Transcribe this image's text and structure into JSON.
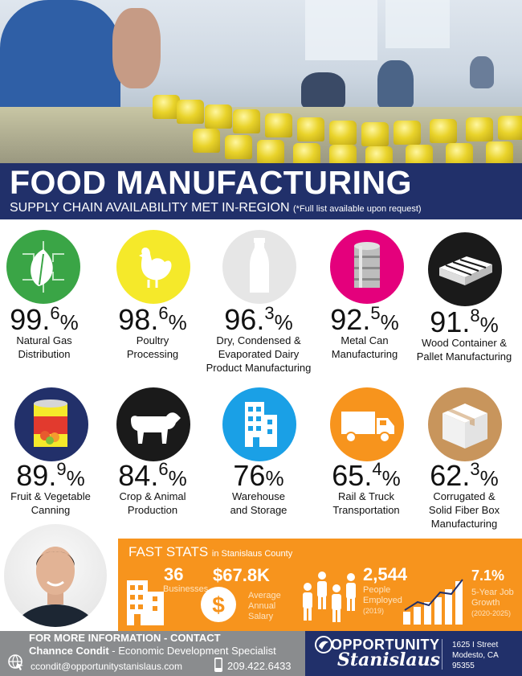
{
  "header": {
    "title": "FOOD MANUFACTURING",
    "subtitle": "SUPPLY CHAIN AVAILABILITY MET IN-REGION",
    "note": "(*Full list available upon request)"
  },
  "industries": [
    {
      "icon": "leaf-circuit-icon",
      "whole": "99.",
      "dec": "6",
      "sym": "%",
      "label1": "Natural Gas",
      "label2": "Distribution",
      "label3": ""
    },
    {
      "icon": "chicken-icon",
      "whole": "98.",
      "dec": "6",
      "sym": "%",
      "label1": "Poultry",
      "label2": "Processing",
      "label3": ""
    },
    {
      "icon": "milk-bottle-icon",
      "whole": "96.",
      "dec": "3",
      "sym": "%",
      "label1": "Dry, Condensed &",
      "label2": "Evaporated Dairy",
      "label3": "Product Manufacturing"
    },
    {
      "icon": "metal-can-icon",
      "whole": "92.",
      "dec": "5",
      "sym": "%",
      "label1": "Metal Can",
      "label2": "Manufacturing",
      "label3": ""
    },
    {
      "icon": "pallet-icon",
      "whole": "91.",
      "dec": "8",
      "sym": "%",
      "label1": "Wood Container &",
      "label2": "Pallet Manufacturing",
      "label3": ""
    },
    {
      "icon": "canned-fruit-icon",
      "whole": "89.",
      "dec": "9",
      "sym": "%",
      "label1": "Fruit & Vegetable",
      "label2": "Canning",
      "label3": ""
    },
    {
      "icon": "cow-icon",
      "whole": "84.",
      "dec": "6",
      "sym": "%",
      "label1": "Crop & Animal",
      "label2": "Production",
      "label3": ""
    },
    {
      "icon": "warehouse-building-icon",
      "whole": "76",
      "dec": "",
      "sym": "%",
      "label1": "Warehouse",
      "label2": "and Storage",
      "label3": ""
    },
    {
      "icon": "truck-icon",
      "whole": "65.",
      "dec": "4",
      "sym": "%",
      "label1": "Rail & Truck",
      "label2": "Transportation",
      "label3": ""
    },
    {
      "icon": "box-icon",
      "whole": "62.",
      "dec": "3",
      "sym": "%",
      "label1": "Corrugated &",
      "label2": "Solid Fiber Box",
      "label3": "Manufacturing"
    }
  ],
  "colors": {
    "navy": "#21306a",
    "orange": "#f7941d",
    "green": "#3aa546",
    "yellow": "#f5e92a",
    "light_gray": "#e6e6e6",
    "magenta": "#e4007c",
    "black": "#1a1a1a",
    "dark_navy": "#22306a",
    "blue": "#1aa0e6",
    "orange2": "#f7941d",
    "tan": "#c8955c"
  },
  "fast_stats": {
    "title": "FAST STATS",
    "location": "in Stanislaus County",
    "businesses_value": "36",
    "businesses_label": "Businesses",
    "salary_value": "$67.8K",
    "salary_label1": "Average",
    "salary_label2": "Annual",
    "salary_label3": "Salary",
    "employed_value": "2,544",
    "employed_label1": "People",
    "employed_label2": "Employed",
    "employed_label3": "(2019)",
    "growth_value": "7.1%",
    "growth_label1": "5-Year Job",
    "growth_label2": "Growth",
    "growth_label3": "(2020-2025)"
  },
  "contact": {
    "heading": "FOR MORE INFORMATION - CONTACT",
    "name": "Channce Condit",
    "role": " - Economic Development Specialist",
    "email": "ccondit@opportunitystanislaus.com",
    "phone": "209.422.6433"
  },
  "org": {
    "logo_line1": "OPPORTUNITY",
    "logo_line2": "Stanislaus",
    "address1": "1625 I Street",
    "address2": "Modesto, CA",
    "address3": "95355"
  }
}
